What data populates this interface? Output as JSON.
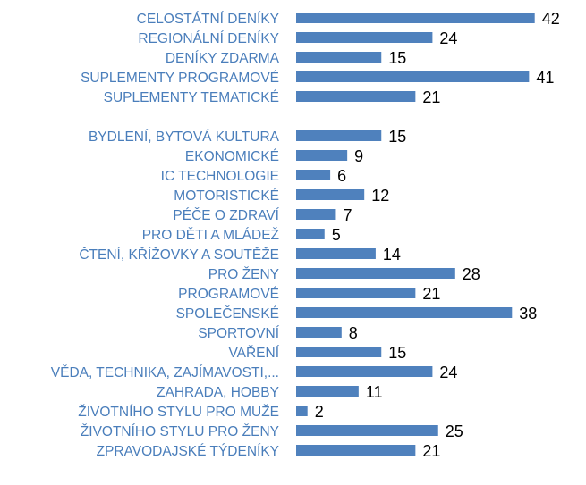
{
  "chart_data": {
    "type": "bar",
    "orientation": "horizontal",
    "title": "",
    "xlabel": "",
    "ylabel": "",
    "xlim": [
      0,
      42
    ],
    "grid": false,
    "legend": "none",
    "bar_color": "#4F81BD",
    "label_color": "#4A7EBB",
    "value_color": "#000000",
    "categories": [
      "CELOSTÁTNÍ DENÍKY",
      "REGIONÁLNÍ DENÍKY",
      "DENÍKY ZDARMA",
      "SUPLEMENTY PROGRAMOVÉ",
      "SUPLEMENTY TEMATICKÉ",
      "",
      "BYDLENÍ, BYTOVÁ KULTURA",
      "EKONOMICKÉ",
      "IC TECHNOLOGIE",
      "MOTORISTICKÉ",
      "PÉČE O ZDRAVÍ",
      "PRO DĚTI A MLÁDEŽ",
      "ČTENÍ, KŘÍŽOVKY A SOUTĚŽE",
      "PRO ŽENY",
      "PROGRAMOVÉ",
      "SPOLEČENSKÉ",
      "SPORTOVNÍ",
      "VAŘENÍ",
      "VĚDA, TECHNIKA, ZAJÍMAVOSTI,...",
      "ZAHRADA, HOBBY",
      "ŽIVOTNÍHO STYLU PRO MUŽE",
      "ŽIVOTNÍHO STYLU PRO ŽENY",
      "ZPRAVODAJSKÉ TÝDENÍKY"
    ],
    "values": [
      42,
      24,
      15,
      41,
      21,
      null,
      15,
      9,
      6,
      12,
      7,
      5,
      14,
      28,
      21,
      38,
      8,
      15,
      24,
      11,
      2,
      25,
      21
    ]
  }
}
